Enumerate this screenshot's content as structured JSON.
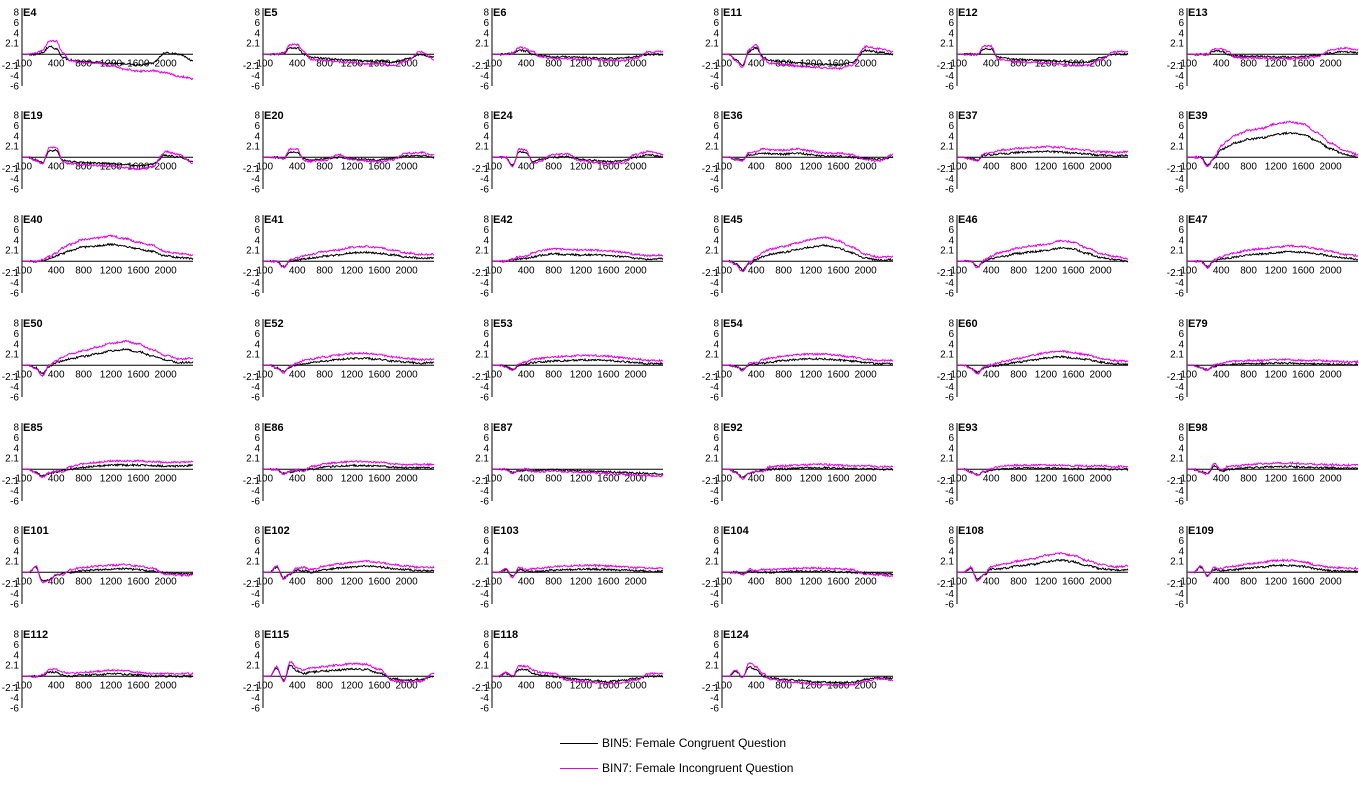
{
  "chart_data": {
    "type": "line",
    "title": "",
    "xlabel": "",
    "ylabel": "",
    "xlim": [
      -100,
      2400
    ],
    "ylim": [
      -6,
      8
    ],
    "x_ticks": [
      "-100",
      "400",
      "800",
      "1200",
      "1600",
      "2000"
    ],
    "y_ticks": [
      "8",
      "6",
      "4",
      "2.1",
      "-2.1",
      "-4",
      "-6"
    ],
    "series": [
      {
        "name": "BIN5: Female Congruent Question",
        "color": "#000000"
      },
      {
        "name": "BIN7: Female Incongruent Question",
        "color": "#e800e8"
      }
    ],
    "x_knots": [
      -100,
      0,
      100,
      200,
      300,
      400,
      500,
      600,
      800,
      1000,
      1200,
      1400,
      1600,
      1800,
      2000,
      2200,
      2400
    ],
    "channels": [
      {
        "name": "E4",
        "s1": [
          0,
          0,
          0,
          0.3,
          1.5,
          1,
          -0.6,
          -1.1,
          -1.4,
          -1.5,
          -1.7,
          -1.8,
          -2,
          -1.7,
          0.3,
          0,
          -1.2
        ],
        "s2": [
          0,
          0,
          0.3,
          0.8,
          2.5,
          2.5,
          0.3,
          -1.2,
          -1.6,
          -1.6,
          -2.2,
          -2.8,
          -3.2,
          -3.1,
          -3.5,
          -4.2,
          -4.6
        ]
      },
      {
        "name": "E5",
        "s1": [
          0,
          0,
          0,
          0.2,
          1.2,
          1.2,
          0,
          -0.6,
          -0.8,
          -1,
          -1.1,
          -1.3,
          -1.3,
          -1.5,
          -0.9,
          0,
          -0.6
        ]
      },
      {
        "name": "E6",
        "s1": [
          0,
          0,
          0,
          0.2,
          0.8,
          0.6,
          0,
          -0.2,
          -0.5,
          -0.5,
          -0.6,
          -0.7,
          -0.8,
          -0.8,
          -0.4,
          0,
          0
        ]
      },
      {
        "name": "E11",
        "s1": [
          0,
          0,
          -1,
          -2,
          0.5,
          1.2,
          -0.5,
          -1.2,
          -1.4,
          -1.6,
          -1.8,
          -1.9,
          -2,
          -1.5,
          0.7,
          0.4,
          0
        ]
      },
      {
        "name": "E12",
        "s1": [
          0,
          0,
          0,
          0,
          1,
          1,
          -0.6,
          -0.7,
          -1,
          -1.1,
          -1.2,
          -1.3,
          -1.5,
          -1.5,
          -0.7,
          0,
          0
        ]
      },
      {
        "name": "E13",
        "s1": [
          0,
          0,
          0,
          0,
          0.6,
          0.6,
          0,
          -0.3,
          -0.4,
          -0.4,
          -0.5,
          -0.5,
          -0.4,
          -0.2,
          0.2,
          0.5,
          0.3
        ]
      },
      {
        "name": "E19",
        "s1": [
          0,
          0,
          -0.5,
          -1,
          1.2,
          1.3,
          -0.6,
          -0.8,
          -1,
          -1.1,
          -1.2,
          -1.4,
          -1.6,
          -1.3,
          0.4,
          0,
          -0.8
        ]
      },
      {
        "name": "E20",
        "s1": [
          0,
          0,
          0,
          -0.2,
          1,
          1,
          -0.3,
          -0.5,
          -0.3,
          0,
          -0.2,
          -0.4,
          -0.5,
          -0.2,
          0.2,
          0.3,
          0
        ]
      },
      {
        "name": "E24",
        "s1": [
          0,
          0,
          0,
          -1.5,
          1,
          0.8,
          -0.8,
          -0.4,
          0,
          0.1,
          -0.4,
          -0.6,
          -0.8,
          -0.7,
          0,
          0.5,
          0
        ]
      },
      {
        "name": "E36",
        "s1": [
          0,
          0,
          -0.4,
          -0.5,
          0.5,
          0.6,
          0.8,
          0.7,
          0.6,
          0.8,
          0.5,
          0.2,
          0.2,
          0,
          -0.2,
          -0.4,
          0
        ]
      },
      {
        "name": "E37",
        "s1": [
          0,
          0,
          -0.3,
          -0.5,
          0.4,
          0.5,
          0.6,
          0.7,
          0.9,
          1,
          1.1,
          1,
          0.8,
          0.6,
          0.4,
          0.3,
          0.4
        ]
      },
      {
        "name": "E39",
        "s1": [
          0,
          0,
          0,
          -1.5,
          -0.2,
          1.5,
          2,
          2.7,
          3.4,
          3.7,
          4.3,
          4.6,
          4.3,
          3.1,
          1.6,
          0.6,
          0
        ]
      },
      {
        "name": "E40",
        "s1": [
          0,
          0,
          0,
          0.2,
          0.5,
          1,
          1.5,
          2,
          2.7,
          2.9,
          3.2,
          2.8,
          2.3,
          1.9,
          1,
          0.7,
          0.5
        ]
      },
      {
        "name": "E41",
        "s1": [
          0,
          0,
          0,
          -1,
          0,
          0.3,
          0.4,
          0.6,
          1,
          1.2,
          1.6,
          1.7,
          1.5,
          1.2,
          0.8,
          0.6,
          0.6
        ]
      },
      {
        "name": "E42",
        "s1": [
          0,
          0,
          0,
          0.3,
          0.5,
          0.5,
          0.8,
          1.1,
          1.4,
          1.3,
          1.2,
          1.2,
          1.1,
          0.9,
          0.6,
          0.4,
          0.5
        ]
      },
      {
        "name": "E45",
        "s1": [
          0,
          0,
          -0.5,
          -1.6,
          -0.5,
          0.4,
          0.9,
          1.3,
          1.7,
          2.2,
          2.7,
          3,
          2.5,
          1.6,
          0.6,
          0.2,
          0.3
        ]
      },
      {
        "name": "E46",
        "s1": [
          0,
          0,
          0,
          -1,
          0,
          0.5,
          0.8,
          1,
          1.5,
          1.8,
          2,
          2.5,
          2.3,
          1.5,
          0.7,
          0.3,
          0
        ]
      },
      {
        "name": "E47",
        "s1": [
          0,
          0,
          0,
          -1,
          0,
          0.4,
          0.6,
          0.8,
          1.2,
          1.4,
          1.6,
          1.8,
          1.7,
          1.4,
          1,
          0.6,
          0.4
        ]
      },
      {
        "name": "E50",
        "s1": [
          0,
          0,
          -0.5,
          -1.6,
          -0.2,
          0.5,
          0.8,
          1.2,
          1.7,
          2.2,
          2.7,
          3,
          2.6,
          1.8,
          1,
          0.5,
          0.6
        ]
      },
      {
        "name": "E52",
        "s1": [
          0,
          0,
          -0.5,
          -1.2,
          -0.3,
          0.1,
          0.3,
          0.5,
          0.8,
          1.1,
          1.3,
          1.3,
          1.1,
          0.8,
          0.6,
          0.4,
          0.5
        ]
      },
      {
        "name": "E53",
        "s1": [
          0,
          0,
          -0.2,
          -0.8,
          0,
          0.3,
          0.5,
          0.6,
          0.8,
          0.9,
          1,
          1,
          0.9,
          0.7,
          0.5,
          0.3,
          0.3
        ]
      },
      {
        "name": "E54",
        "s1": [
          0,
          0,
          -0.2,
          -0.8,
          0,
          0.2,
          0.4,
          0.6,
          0.9,
          1.1,
          1.2,
          1.2,
          1,
          0.8,
          0.5,
          0.3,
          0.3
        ]
      },
      {
        "name": "E60",
        "s1": [
          0,
          0,
          -0.5,
          -1.3,
          -0.5,
          -0.2,
          0,
          0.2,
          0.6,
          1,
          1.4,
          1.6,
          1.4,
          1.1,
          0.6,
          0.3,
          0.2
        ]
      },
      {
        "name": "E79",
        "s1": [
          0,
          0,
          -0.4,
          -0.8,
          -0.2,
          0,
          0.1,
          0.2,
          0.3,
          0.3,
          0.4,
          0.4,
          0.3,
          0.3,
          0.2,
          0.1,
          0.1
        ]
      },
      {
        "name": "E85",
        "s1": [
          0,
          0,
          -0.6,
          -1.2,
          -0.8,
          -0.5,
          -0.2,
          0,
          0.4,
          0.6,
          0.8,
          0.8,
          0.8,
          0.7,
          0.6,
          0.6,
          0.7
        ]
      },
      {
        "name": "E86",
        "s1": [
          0,
          0,
          0,
          -0.8,
          -0.5,
          -0.3,
          -0.1,
          0,
          0.4,
          0.6,
          0.7,
          0.7,
          0.6,
          0.4,
          0.3,
          0.3,
          0.3
        ]
      },
      {
        "name": "E87",
        "s1": [
          0,
          0,
          0,
          -0.6,
          -0.3,
          -0.2,
          -0.2,
          -0.2,
          -0.1,
          -0.2,
          -0.3,
          -0.4,
          -0.5,
          -0.6,
          -0.7,
          -0.8,
          -0.9
        ]
      },
      {
        "name": "E92",
        "s1": [
          0,
          0,
          -0.5,
          -1.5,
          -0.8,
          -0.5,
          -0.2,
          0,
          0.1,
          0.2,
          0.3,
          0.3,
          0.2,
          0.1,
          0.1,
          0,
          0
        ]
      },
      {
        "name": "E93",
        "s1": [
          0,
          0,
          -0.5,
          -1,
          -0.5,
          -0.2,
          0,
          0.1,
          0.2,
          0.2,
          0.2,
          0.2,
          0.1,
          0.1,
          0.1,
          0,
          0
        ]
      },
      {
        "name": "E98",
        "s1": [
          0,
          0,
          -0.4,
          -0.8,
          0.6,
          -0.4,
          0,
          0.1,
          0.3,
          0.4,
          0.5,
          0.5,
          0.4,
          0.3,
          0.3,
          0.2,
          0.2
        ]
      },
      {
        "name": "E101",
        "s1": [
          0,
          0,
          1,
          -1.6,
          -1.4,
          -0.6,
          -0.2,
          0,
          0.3,
          0.5,
          0.6,
          0.7,
          0.5,
          0.2,
          -0.1,
          -0.3,
          -0.3
        ]
      },
      {
        "name": "E102",
        "s1": [
          0,
          0,
          1,
          -1,
          -0.4,
          0.4,
          0.3,
          0,
          0.5,
          0.8,
          1,
          1.2,
          1,
          0.7,
          0.5,
          0.3,
          0.3
        ]
      },
      {
        "name": "E103",
        "s1": [
          0,
          0,
          0.5,
          -0.8,
          0.5,
          0.2,
          0.1,
          0.2,
          0.4,
          0.5,
          0.6,
          0.6,
          0.5,
          0.4,
          0.3,
          0.2,
          0.2
        ]
      },
      {
        "name": "E104",
        "s1": [
          0,
          0,
          0,
          -0.4,
          0.2,
          0,
          0,
          0,
          0.1,
          0.2,
          0.2,
          0.2,
          0.1,
          0,
          -0.1,
          -0.2,
          -0.4
        ]
      },
      {
        "name": "E108",
        "s1": [
          0,
          0,
          0.8,
          -1.4,
          -0.5,
          0.6,
          0.6,
          0.8,
          1.2,
          1.5,
          2,
          2.3,
          2,
          1.3,
          0.7,
          0.4,
          0.5
        ]
      },
      {
        "name": "E109",
        "s1": [
          0,
          0,
          1,
          -0.6,
          0.5,
          0.3,
          0.4,
          0.5,
          0.8,
          1,
          1.3,
          1.3,
          1.1,
          0.6,
          0.3,
          0.2,
          0.2
        ]
      },
      {
        "name": "E112",
        "s1": [
          0,
          0,
          0,
          0.2,
          0.8,
          0.8,
          0.2,
          0,
          0.2,
          0.3,
          0.5,
          0.4,
          0.2,
          0,
          0,
          0,
          0
        ]
      },
      {
        "name": "E115",
        "s1": [
          0,
          0,
          1.5,
          -0.8,
          2,
          1,
          0.5,
          0.8,
          1,
          1.2,
          1.4,
          1.3,
          0.6,
          -0.5,
          -0.7,
          -0.6,
          0
        ]
      },
      {
        "name": "E118",
        "s1": [
          0,
          0,
          0.6,
          0,
          1.3,
          1.3,
          0.5,
          0.2,
          0,
          -0.4,
          -0.6,
          -0.8,
          -1,
          -0.8,
          -0.4,
          0,
          0
        ]
      },
      {
        "name": "E124",
        "s1": [
          0,
          0,
          1,
          -0.2,
          1.8,
          1.2,
          0,
          -0.3,
          -0.6,
          -0.8,
          -1,
          -1.1,
          -1.2,
          -1.1,
          -0.6,
          -0.2,
          -0.4
        ]
      }
    ]
  },
  "legend": {
    "entries": [
      {
        "label": "BIN5: Female Congruent Question",
        "color": "#000000"
      },
      {
        "label": "BIN7: Female Incongruent Question",
        "color": "#e800e8"
      }
    ]
  }
}
